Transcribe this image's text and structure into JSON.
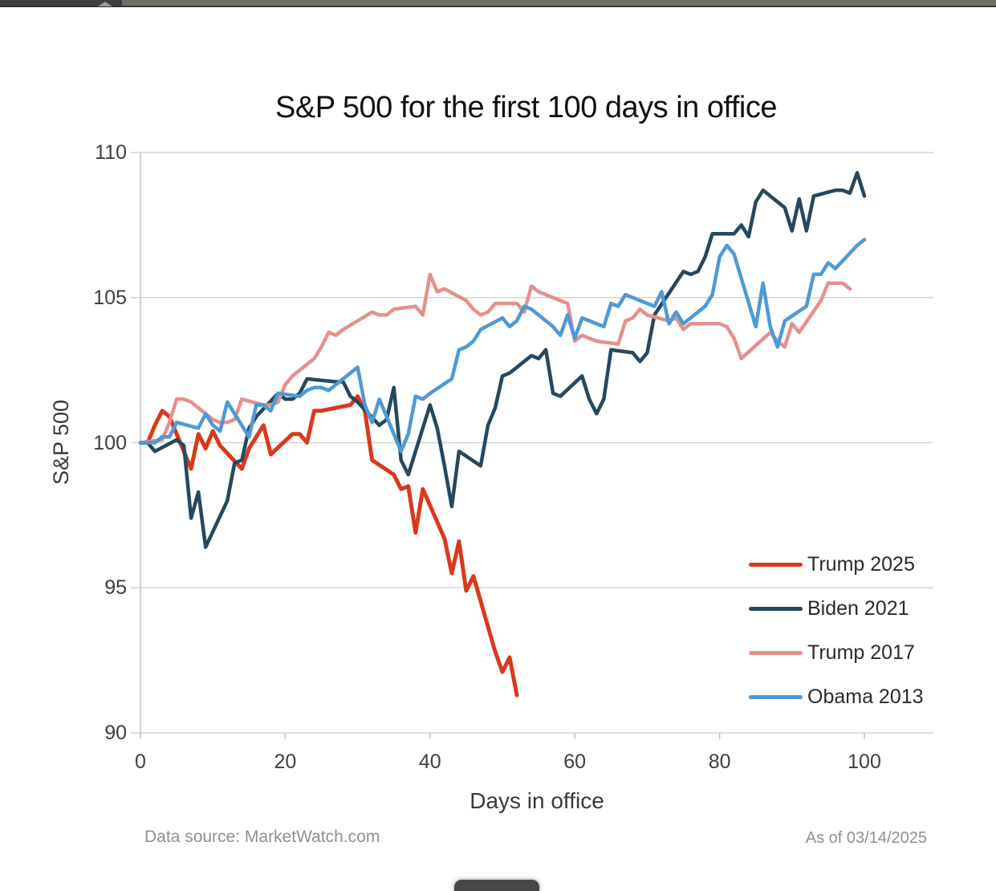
{
  "chart_data": {
    "type": "line",
    "title": "S&P 500 for the first 100 days in office",
    "xlabel": "Days in office",
    "ylabel": "S&P 500",
    "xlim": [
      0,
      110
    ],
    "ylim": [
      90,
      110
    ],
    "x_ticks": [
      0,
      20,
      40,
      60,
      80,
      100
    ],
    "y_ticks": [
      110,
      105,
      100,
      95,
      90
    ],
    "grid": true,
    "legend_position": "inside-right",
    "series": [
      {
        "name": "Trump 2025",
        "color": "#d8391d",
        "points": [
          [
            0,
            100
          ],
          [
            1,
            100
          ],
          [
            2,
            100.6
          ],
          [
            3,
            101.1
          ],
          [
            4,
            100.9
          ],
          [
            7,
            99.1
          ],
          [
            8,
            100.3
          ],
          [
            9,
            99.8
          ],
          [
            10,
            100.4
          ],
          [
            11,
            99.9
          ],
          [
            14,
            99.1
          ],
          [
            15,
            99.8
          ],
          [
            16,
            100.2
          ],
          [
            17,
            100.6
          ],
          [
            18,
            99.6
          ],
          [
            21,
            100.3
          ],
          [
            22,
            100.3
          ],
          [
            23,
            100
          ],
          [
            24,
            101.1
          ],
          [
            25,
            101.1
          ],
          [
            29,
            101.3
          ],
          [
            30,
            101.6
          ],
          [
            31,
            101.1
          ],
          [
            32,
            99.4
          ],
          [
            35,
            98.9
          ],
          [
            36,
            98.4
          ],
          [
            37,
            98.5
          ],
          [
            38,
            96.9
          ],
          [
            39,
            98.4
          ],
          [
            42,
            96.7
          ],
          [
            43,
            95.5
          ],
          [
            44,
            96.6
          ],
          [
            45,
            94.9
          ],
          [
            46,
            95.4
          ],
          [
            49,
            92.8
          ],
          [
            50,
            92.1
          ],
          [
            51,
            92.6
          ],
          [
            52,
            91.3
          ]
        ]
      },
      {
        "name": "Biden 2021",
        "color": "#26485e",
        "points": [
          [
            0,
            100
          ],
          [
            1,
            100
          ],
          [
            2,
            99.7
          ],
          [
            5,
            100.1
          ],
          [
            6,
            99.9
          ],
          [
            7,
            97.4
          ],
          [
            8,
            98.3
          ],
          [
            9,
            96.4
          ],
          [
            12,
            98
          ],
          [
            13,
            99.3
          ],
          [
            14,
            99.4
          ],
          [
            15,
            100.5
          ],
          [
            16,
            100.9
          ],
          [
            19,
            101.7
          ],
          [
            20,
            101.5
          ],
          [
            21,
            101.5
          ],
          [
            22,
            101.7
          ],
          [
            23,
            102.2
          ],
          [
            27,
            102.1
          ],
          [
            28,
            102.1
          ],
          [
            29,
            101.6
          ],
          [
            30,
            101.4
          ],
          [
            33,
            100.6
          ],
          [
            34,
            100.8
          ],
          [
            35,
            101.9
          ],
          [
            36,
            99.4
          ],
          [
            37,
            98.9
          ],
          [
            40,
            101.3
          ],
          [
            41,
            100.5
          ],
          [
            42,
            99.2
          ],
          [
            43,
            97.8
          ],
          [
            44,
            99.7
          ],
          [
            47,
            99.2
          ],
          [
            48,
            100.6
          ],
          [
            49,
            101.2
          ],
          [
            50,
            102.3
          ],
          [
            51,
            102.4
          ],
          [
            54,
            103
          ],
          [
            55,
            102.9
          ],
          [
            56,
            103.2
          ],
          [
            57,
            101.7
          ],
          [
            58,
            101.6
          ],
          [
            61,
            102.3
          ],
          [
            62,
            101.5
          ],
          [
            63,
            101
          ],
          [
            64,
            101.5
          ],
          [
            65,
            103.2
          ],
          [
            68,
            103.1
          ],
          [
            69,
            102.8
          ],
          [
            70,
            103.1
          ],
          [
            71,
            104.4
          ],
          [
            75,
            105.9
          ],
          [
            76,
            105.8
          ],
          [
            77,
            105.9
          ],
          [
            78,
            106.4
          ],
          [
            79,
            107.2
          ],
          [
            82,
            107.2
          ],
          [
            83,
            107.5
          ],
          [
            84,
            107.1
          ],
          [
            85,
            108.3
          ],
          [
            86,
            108.7
          ],
          [
            89,
            108.1
          ],
          [
            90,
            107.3
          ],
          [
            91,
            108.4
          ],
          [
            92,
            107.3
          ],
          [
            93,
            108.5
          ],
          [
            96,
            108.7
          ],
          [
            97,
            108.7
          ],
          [
            98,
            108.6
          ],
          [
            99,
            109.3
          ],
          [
            100,
            108.5
          ]
        ]
      },
      {
        "name": "Trump 2017",
        "color": "#e5908f",
        "points": [
          [
            0,
            100
          ],
          [
            3,
            100.1
          ],
          [
            4,
            100.7
          ],
          [
            5,
            101.5
          ],
          [
            6,
            101.5
          ],
          [
            7,
            101.4
          ],
          [
            10,
            100.8
          ],
          [
            11,
            100.7
          ],
          [
            12,
            100.7
          ],
          [
            13,
            100.8
          ],
          [
            14,
            101.5
          ],
          [
            17,
            101.3
          ],
          [
            18,
            101.3
          ],
          [
            19,
            101.4
          ],
          [
            20,
            102
          ],
          [
            21,
            102.3
          ],
          [
            24,
            102.9
          ],
          [
            25,
            103.3
          ],
          [
            26,
            103.8
          ],
          [
            27,
            103.7
          ],
          [
            28,
            103.9
          ],
          [
            32,
            104.5
          ],
          [
            33,
            104.4
          ],
          [
            34,
            104.4
          ],
          [
            35,
            104.6
          ],
          [
            38,
            104.7
          ],
          [
            39,
            104.4
          ],
          [
            40,
            105.8
          ],
          [
            41,
            105.2
          ],
          [
            42,
            105.3
          ],
          [
            45,
            104.9
          ],
          [
            46,
            104.6
          ],
          [
            47,
            104.4
          ],
          [
            48,
            104.5
          ],
          [
            49,
            104.8
          ],
          [
            52,
            104.8
          ],
          [
            53,
            104.5
          ],
          [
            54,
            105.4
          ],
          [
            55,
            105.2
          ],
          [
            56,
            105.1
          ],
          [
            59,
            104.8
          ],
          [
            60,
            103.5
          ],
          [
            61,
            103.7
          ],
          [
            62,
            103.6
          ],
          [
            63,
            103.5
          ],
          [
            66,
            103.4
          ],
          [
            67,
            104.2
          ],
          [
            68,
            104.3
          ],
          [
            69,
            104.6
          ],
          [
            70,
            104.4
          ],
          [
            73,
            104.2
          ],
          [
            74,
            104.3
          ],
          [
            75,
            103.9
          ],
          [
            76,
            104.1
          ],
          [
            77,
            104.1
          ],
          [
            80,
            104.1
          ],
          [
            81,
            104
          ],
          [
            82,
            103.6
          ],
          [
            83,
            102.9
          ],
          [
            87,
            103.8
          ],
          [
            88,
            103.5
          ],
          [
            89,
            103.3
          ],
          [
            90,
            104.1
          ],
          [
            91,
            103.8
          ],
          [
            94,
            104.9
          ],
          [
            95,
            105.5
          ],
          [
            96,
            105.5
          ],
          [
            97,
            105.5
          ],
          [
            98,
            105.3
          ]
        ]
      },
      {
        "name": "Obama 2013",
        "color": "#4d9ad5",
        "points": [
          [
            0,
            100
          ],
          [
            2,
            100
          ],
          [
            3,
            100.2
          ],
          [
            4,
            100.2
          ],
          [
            5,
            100.7
          ],
          [
            8,
            100.5
          ],
          [
            9,
            101
          ],
          [
            10,
            100.6
          ],
          [
            11,
            100.4
          ],
          [
            12,
            101.4
          ],
          [
            15,
            100.2
          ],
          [
            16,
            101.3
          ],
          [
            17,
            101.3
          ],
          [
            18,
            101.1
          ],
          [
            19,
            101.7
          ],
          [
            22,
            101.6
          ],
          [
            23,
            101.8
          ],
          [
            24,
            101.9
          ],
          [
            25,
            101.9
          ],
          [
            26,
            101.8
          ],
          [
            30,
            102.6
          ],
          [
            31,
            101.3
          ],
          [
            32,
            100.7
          ],
          [
            33,
            101.5
          ],
          [
            36,
            99.7
          ],
          [
            37,
            100.3
          ],
          [
            38,
            101.6
          ],
          [
            39,
            101.5
          ],
          [
            40,
            101.7
          ],
          [
            43,
            102.2
          ],
          [
            44,
            103.2
          ],
          [
            45,
            103.3
          ],
          [
            46,
            103.5
          ],
          [
            47,
            103.9
          ],
          [
            50,
            104.3
          ],
          [
            51,
            104
          ],
          [
            52,
            104.2
          ],
          [
            53,
            104.7
          ],
          [
            54,
            104.6
          ],
          [
            57,
            104
          ],
          [
            58,
            103.7
          ],
          [
            59,
            104.4
          ],
          [
            60,
            103.6
          ],
          [
            61,
            104.3
          ],
          [
            64,
            104
          ],
          [
            65,
            104.8
          ],
          [
            66,
            104.7
          ],
          [
            67,
            105.1
          ],
          [
            71,
            104.7
          ],
          [
            72,
            105.2
          ],
          [
            73,
            104.1
          ],
          [
            74,
            104.5
          ],
          [
            75,
            104.1
          ],
          [
            78,
            104.7
          ],
          [
            79,
            105.1
          ],
          [
            80,
            106.4
          ],
          [
            81,
            106.8
          ],
          [
            82,
            106.5
          ],
          [
            85,
            104
          ],
          [
            86,
            105.5
          ],
          [
            87,
            104
          ],
          [
            88,
            103.3
          ],
          [
            89,
            104.2
          ],
          [
            92,
            104.7
          ],
          [
            93,
            105.8
          ],
          [
            94,
            105.8
          ],
          [
            95,
            106.2
          ],
          [
            96,
            106
          ],
          [
            99,
            106.8
          ],
          [
            100,
            107
          ]
        ]
      }
    ],
    "theme": {
      "gridline": "#d4d4d4",
      "axis": "#c6c6c6",
      "tick_text": "#3f3f3f",
      "title_text": "#111111",
      "footer_text": "#909090"
    }
  },
  "footer": {
    "source": "Data source: MarketWatch.com",
    "as_of": "As of 03/14/2025"
  },
  "ui": {
    "topbar_left_color": "#3f3f3e",
    "topbar_right_color": "#6f6e67",
    "dock_pill_color": "#474747"
  }
}
